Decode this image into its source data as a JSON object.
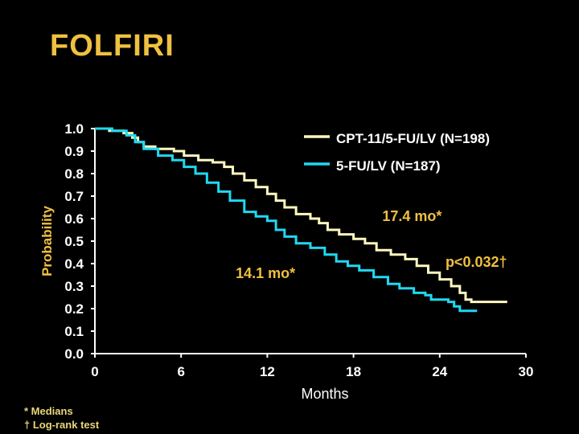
{
  "title": "FOLFIRI",
  "footnotes": {
    "medians": "*  Medians",
    "logrank": "† Log-rank test"
  },
  "colors": {
    "background": "#000000",
    "title": "#f0c040",
    "axis": "#ffffff",
    "series1": "#fff8c0",
    "series2": "#20d8f0",
    "annotation": "#f0c040",
    "ylabel": "#f0c040"
  },
  "chart_data": {
    "type": "line",
    "title": "",
    "xlabel": "Months",
    "ylabel": "Probability",
    "xlim": [
      0,
      30
    ],
    "ylim": [
      0,
      1
    ],
    "xticks": [
      "0",
      "6",
      "12",
      "18",
      "24",
      "30"
    ],
    "yticks": [
      "0.0",
      "0.1",
      "0.2",
      "0.3",
      "0.4",
      "0.5",
      "0.6",
      "0.7",
      "0.8",
      "0.9",
      "1.0"
    ],
    "legend_position": "top-right",
    "grid": false,
    "series": [
      {
        "name": "CPT-11/5-FU/LV (N=198)",
        "step": true,
        "points": [
          [
            0,
            1.0
          ],
          [
            1.0,
            0.99
          ],
          [
            2.0,
            0.98
          ],
          [
            2.6,
            0.96
          ],
          [
            3.0,
            0.94
          ],
          [
            3.4,
            0.92
          ],
          [
            4.2,
            0.91
          ],
          [
            5.5,
            0.9
          ],
          [
            6.2,
            0.88
          ],
          [
            7.2,
            0.86
          ],
          [
            8.2,
            0.85
          ],
          [
            9.0,
            0.83
          ],
          [
            9.6,
            0.8
          ],
          [
            10.4,
            0.77
          ],
          [
            11.2,
            0.74
          ],
          [
            12.0,
            0.71
          ],
          [
            12.6,
            0.68
          ],
          [
            13.2,
            0.65
          ],
          [
            14.0,
            0.62
          ],
          [
            15.0,
            0.6
          ],
          [
            15.6,
            0.58
          ],
          [
            16.2,
            0.55
          ],
          [
            17.0,
            0.53
          ],
          [
            18.0,
            0.51
          ],
          [
            18.8,
            0.49
          ],
          [
            19.6,
            0.46
          ],
          [
            20.6,
            0.44
          ],
          [
            21.6,
            0.42
          ],
          [
            22.4,
            0.39
          ],
          [
            23.2,
            0.36
          ],
          [
            24.0,
            0.33
          ],
          [
            24.8,
            0.3
          ],
          [
            25.4,
            0.27
          ],
          [
            25.8,
            0.24
          ],
          [
            26.2,
            0.23
          ],
          [
            28.7,
            0.23
          ]
        ]
      },
      {
        "name": "5-FU/LV (N=187)",
        "step": true,
        "points": [
          [
            0,
            1.0
          ],
          [
            1.2,
            0.99
          ],
          [
            2.2,
            0.97
          ],
          [
            2.8,
            0.94
          ],
          [
            3.4,
            0.91
          ],
          [
            4.4,
            0.88
          ],
          [
            5.4,
            0.86
          ],
          [
            6.2,
            0.83
          ],
          [
            7.0,
            0.8
          ],
          [
            7.8,
            0.76
          ],
          [
            8.6,
            0.72
          ],
          [
            9.4,
            0.68
          ],
          [
            10.4,
            0.63
          ],
          [
            11.2,
            0.61
          ],
          [
            12.0,
            0.59
          ],
          [
            12.6,
            0.55
          ],
          [
            13.2,
            0.52
          ],
          [
            14.0,
            0.49
          ],
          [
            15.0,
            0.47
          ],
          [
            16.0,
            0.44
          ],
          [
            16.8,
            0.41
          ],
          [
            17.6,
            0.39
          ],
          [
            18.4,
            0.37
          ],
          [
            19.4,
            0.34
          ],
          [
            20.4,
            0.31
          ],
          [
            21.2,
            0.29
          ],
          [
            22.2,
            0.27
          ],
          [
            23.0,
            0.26
          ],
          [
            23.4,
            0.24
          ],
          [
            24.6,
            0.23
          ],
          [
            25.0,
            0.21
          ],
          [
            25.4,
            0.19
          ],
          [
            26.6,
            0.19
          ]
        ]
      }
    ],
    "annotations": [
      {
        "text": "17.4 mo*",
        "x": 20.0,
        "y": 0.59
      },
      {
        "text": "14.1 mo*",
        "x": 9.8,
        "y": 0.335
      },
      {
        "text": "p<0.032†",
        "x": 24.4,
        "y": 0.385
      }
    ]
  }
}
